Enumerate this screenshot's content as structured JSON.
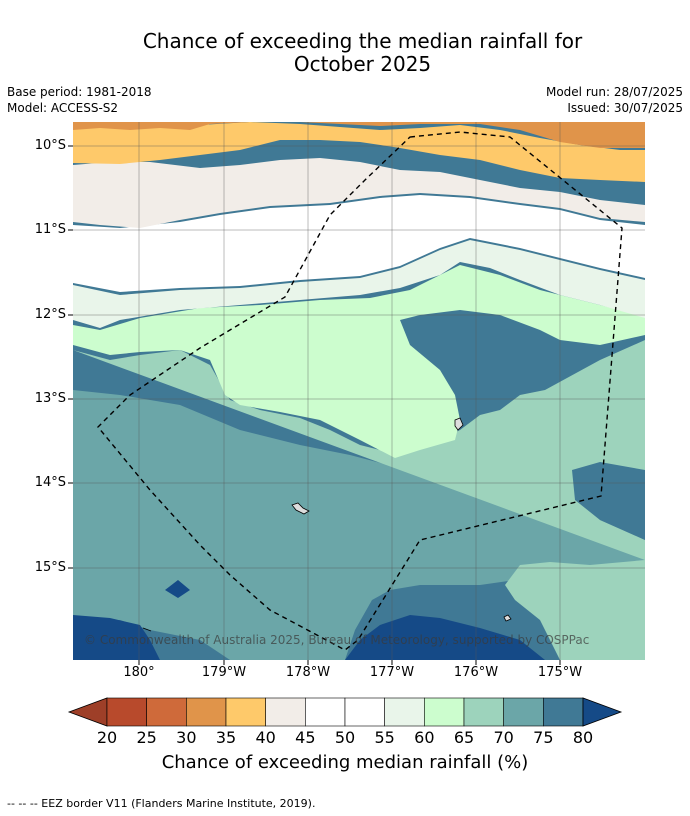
{
  "title_line1": "Chance of exceeding the median rainfall for",
  "title_line2": "October 2025",
  "meta": {
    "base_period": "Base period: 1981-2018",
    "model": "Model: ACCESS-S2",
    "model_run": "Model run: 28/07/2025",
    "issued": "Issued: 30/07/2025"
  },
  "latitude_labels": [
    "10°S",
    "11°S",
    "12°S",
    "13°S",
    "14°S",
    "15°S"
  ],
  "longitude_labels": [
    "180°",
    "179°W",
    "178°W",
    "177°W",
    "176°W",
    "175°W"
  ],
  "credit": "© Commonwealth of Australia 2025, Bureau of Meteorology, supported by COSPPac",
  "colorbar": {
    "label": "Chance of exceeding median rainfall (%)",
    "ticks": [
      "20",
      "25",
      "30",
      "35",
      "40",
      "45",
      "50",
      "55",
      "60",
      "65",
      "70",
      "75",
      "80"
    ],
    "colors": [
      "#9e3f28",
      "#b84a2c",
      "#cf6a3a",
      "#e0944a",
      "#fec96a",
      "#f2ede8",
      "#ffffff",
      "#ffffff",
      "#e9f5ea",
      "#ccfdce",
      "#9dd3bc",
      "#6ba6a8",
      "#407995",
      "#154a87"
    ]
  },
  "footnote": "--  --  -- EEZ border V11 (Flanders Marine Institute, 2019).",
  "map_colors": {
    "p30": "#e0944a",
    "p35": "#fec96a",
    "p40": "#f2ede8",
    "p45": "#ffffff",
    "p55": "#e9f5ea",
    "p60": "#ccfdce",
    "p65": "#9dd3bc",
    "p70": "#6ba6a8",
    "p75": "#407995",
    "p80": "#154a87"
  }
}
